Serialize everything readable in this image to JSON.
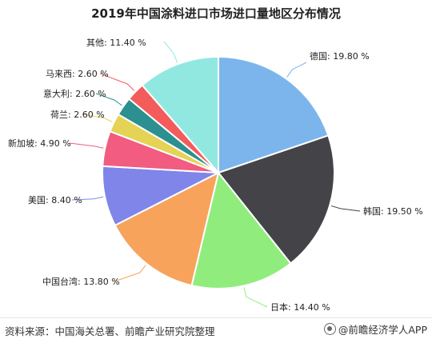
{
  "chart_data": {
    "type": "pie",
    "title": "2019年中国涂料进口市场进口量地区分布情况",
    "slices": [
      {
        "label": "德国",
        "value": 19.8,
        "display": "德国: 19.80 %",
        "color": "#7cb5ec"
      },
      {
        "label": "韩国",
        "value": 19.5,
        "display": "韩国: 19.50 %",
        "color": "#434348"
      },
      {
        "label": "日本",
        "value": 14.4,
        "display": "日本: 14.40 %",
        "color": "#90ed7d"
      },
      {
        "label": "中国台湾",
        "value": 13.8,
        "display": "中国台湾: 13.80 %",
        "color": "#f7a35c"
      },
      {
        "label": "美国",
        "value": 8.4,
        "display": "美国: 8.40 %",
        "color": "#8085e9"
      },
      {
        "label": "新加坡",
        "value": 4.9,
        "display": "新加坡: 4.90 %",
        "color": "#f15c80"
      },
      {
        "label": "荷兰",
        "value": 2.6,
        "display": "荷兰: 2.60 %",
        "color": "#e4d354"
      },
      {
        "label": "意大利",
        "value": 2.6,
        "display": "意大利: 2.60 %",
        "color": "#2b908f"
      },
      {
        "label": "马来西",
        "value": 2.6,
        "display": "马来西: 2.60 %",
        "color": "#f45b5b"
      },
      {
        "label": "其他",
        "value": 11.4,
        "display": "其他: 11.40 %",
        "color": "#91e8e1"
      }
    ],
    "start_direction": "12 o'clock",
    "order": "clockwise",
    "legend": "none (leader-line labels)"
  },
  "footer": {
    "source": "资料来源：中国海关总署、前瞻产业研究院整理",
    "brand": "@前瞻经济学人APP"
  }
}
